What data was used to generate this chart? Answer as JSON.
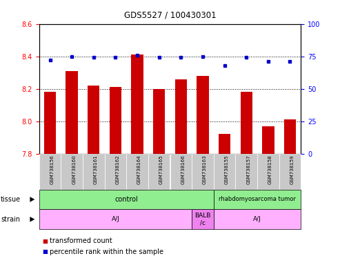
{
  "title": "GDS5527 / 100430301",
  "samples": [
    "GSM738156",
    "GSM738160",
    "GSM738161",
    "GSM738162",
    "GSM738164",
    "GSM738165",
    "GSM738166",
    "GSM738163",
    "GSM738155",
    "GSM738157",
    "GSM738158",
    "GSM738159"
  ],
  "transformed_count": [
    8.18,
    8.31,
    8.22,
    8.21,
    8.41,
    8.2,
    8.26,
    8.28,
    7.92,
    8.18,
    7.97,
    8.01
  ],
  "percentile_rank": [
    72,
    75,
    74,
    74,
    76,
    74,
    74,
    75,
    68,
    74,
    71,
    71
  ],
  "ylim_left": [
    7.8,
    8.6
  ],
  "ylim_right": [
    0,
    100
  ],
  "yticks_left": [
    7.8,
    8.0,
    8.2,
    8.4,
    8.6
  ],
  "yticks_right": [
    0,
    25,
    50,
    75,
    100
  ],
  "bar_color": "#cc0000",
  "dot_color": "#0000cc",
  "bar_bottom": 7.8,
  "tissue_groups": [
    {
      "label": "control",
      "start": 0,
      "end": 8,
      "color": "#90EE90"
    },
    {
      "label": "rhabdomyosarcoma tumor",
      "start": 8,
      "end": 12,
      "color": "#90EE90"
    }
  ],
  "strain_groups": [
    {
      "label": "A/J",
      "start": 0,
      "end": 7,
      "color": "#FFB0FF"
    },
    {
      "label": "BALB\n/c",
      "start": 7,
      "end": 8,
      "color": "#EE82EE"
    },
    {
      "label": "A/J",
      "start": 8,
      "end": 12,
      "color": "#FFB0FF"
    }
  ],
  "tissue_row_label": "tissue",
  "strain_row_label": "strain",
  "legend_items": [
    {
      "color": "#cc0000",
      "label": "transformed count"
    },
    {
      "color": "#0000cc",
      "label": "percentile rank within the sample"
    }
  ],
  "background_label": "#c8c8c8",
  "n_samples": 12
}
